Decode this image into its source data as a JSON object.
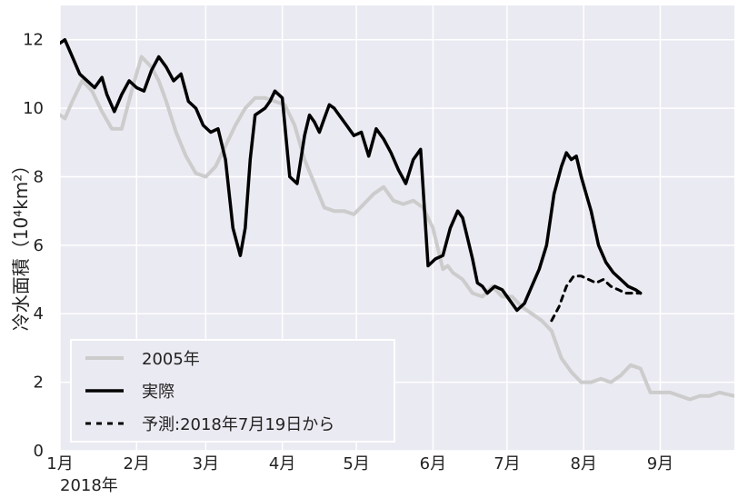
{
  "chart_data": {
    "type": "line",
    "ylabel": "冷水面積（10⁴km²）",
    "xlabel": "",
    "year_label": "2018年",
    "x_tick_labels": [
      "1月",
      "2月",
      "3月",
      "4月",
      "5月",
      "6月",
      "7月",
      "8月",
      "9月"
    ],
    "x_tick_days": [
      1,
      32,
      60,
      91,
      121,
      152,
      182,
      213,
      244
    ],
    "y_tick_labels": [
      "0",
      "2",
      "4",
      "6",
      "8",
      "10",
      "12"
    ],
    "xlim": [
      1,
      274
    ],
    "ylim": [
      0,
      13
    ],
    "grid": true,
    "legend_position": "bottom-left",
    "series": [
      {
        "name": "2005年",
        "color": "#cccccc",
        "style": "solid",
        "x": [
          1,
          3,
          6,
          10,
          14,
          18,
          22,
          26,
          30,
          34,
          38,
          41,
          44,
          48,
          52,
          56,
          60,
          64,
          68,
          72,
          76,
          80,
          84,
          88,
          92,
          96,
          100,
          104,
          108,
          112,
          116,
          120,
          124,
          128,
          132,
          136,
          140,
          144,
          148,
          152,
          156,
          158,
          160,
          164,
          168,
          172,
          176,
          180,
          184,
          188,
          192,
          196,
          200,
          204,
          208,
          212,
          216,
          220,
          224,
          228,
          232,
          236,
          240,
          244,
          248,
          252,
          256,
          260,
          264,
          268,
          274
        ],
        "y": [
          9.8,
          9.7,
          10.2,
          10.8,
          10.5,
          9.9,
          9.4,
          9.4,
          10.5,
          11.5,
          11.2,
          10.8,
          10.2,
          9.3,
          8.6,
          8.1,
          8.0,
          8.3,
          8.9,
          9.5,
          10.0,
          10.3,
          10.3,
          10.2,
          10.1,
          9.5,
          8.5,
          7.8,
          7.1,
          7.0,
          7.0,
          6.9,
          7.2,
          7.5,
          7.7,
          7.3,
          7.2,
          7.3,
          7.1,
          6.5,
          5.3,
          5.4,
          5.2,
          5.0,
          4.6,
          4.5,
          4.8,
          4.5,
          4.5,
          4.2,
          4.0,
          3.8,
          3.5,
          2.7,
          2.3,
          2.0,
          2.0,
          2.1,
          2.0,
          2.2,
          2.5,
          2.4,
          1.7,
          1.7,
          1.7,
          1.6,
          1.5,
          1.6,
          1.6,
          1.7,
          1.6
        ]
      },
      {
        "name": "実際",
        "color": "#000000",
        "style": "solid",
        "x": [
          1,
          3,
          6,
          9,
          12,
          15,
          18,
          20,
          23,
          26,
          29,
          32,
          35,
          38,
          41,
          44,
          47,
          50,
          53,
          56,
          59,
          62,
          65,
          68,
          71,
          74,
          76,
          78,
          80,
          82,
          84,
          86,
          88,
          91,
          94,
          97,
          100,
          102,
          104,
          106,
          108,
          110,
          112,
          114,
          117,
          120,
          123,
          126,
          129,
          132,
          135,
          138,
          141,
          144,
          147,
          150,
          153,
          156,
          159,
          162,
          164,
          166,
          168,
          170,
          172,
          174,
          177,
          180,
          183,
          186,
          189,
          192,
          195,
          198,
          201,
          204,
          206,
          208,
          210,
          212,
          214,
          216,
          219,
          222,
          225,
          228,
          231,
          234,
          236
        ],
        "y": [
          11.9,
          12.0,
          11.5,
          11.0,
          10.8,
          10.6,
          10.9,
          10.4,
          9.9,
          10.4,
          10.8,
          10.6,
          10.5,
          11.1,
          11.5,
          11.2,
          10.8,
          11.0,
          10.2,
          10.0,
          9.5,
          9.3,
          9.4,
          8.5,
          6.5,
          5.7,
          6.5,
          8.5,
          9.8,
          9.9,
          10.0,
          10.2,
          10.5,
          10.3,
          8.0,
          7.8,
          9.2,
          9.8,
          9.6,
          9.3,
          9.7,
          10.1,
          10.0,
          9.8,
          9.5,
          9.2,
          9.3,
          8.6,
          9.4,
          9.1,
          8.7,
          8.2,
          7.8,
          8.5,
          8.8,
          5.4,
          5.6,
          5.7,
          6.5,
          7.0,
          6.8,
          6.2,
          5.6,
          4.9,
          4.8,
          4.6,
          4.8,
          4.7,
          4.4,
          4.1,
          4.3,
          4.8,
          5.3,
          6.0,
          7.5,
          8.3,
          8.7,
          8.5,
          8.6,
          8.0,
          7.5,
          7.0,
          6.0,
          5.5,
          5.2,
          5.0,
          4.8,
          4.7,
          4.6
        ],
        "x_override": true
      },
      {
        "name": "予測:2018年7月19日から",
        "color": "#000000",
        "style": "dashed",
        "x": [
          200,
          203,
          206,
          209,
          212,
          215,
          218,
          221,
          224,
          227,
          230,
          233,
          236
        ],
        "y": [
          3.8,
          4.2,
          4.8,
          5.1,
          5.1,
          5.0,
          4.9,
          5.0,
          4.8,
          4.7,
          4.6,
          4.6,
          4.6
        ]
      }
    ]
  }
}
